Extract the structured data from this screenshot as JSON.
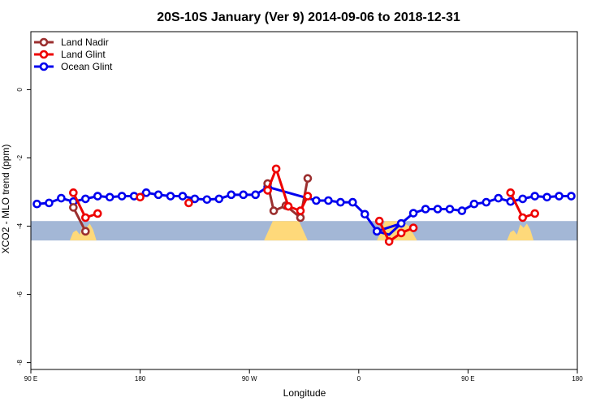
{
  "chart_data": {
    "type": "line",
    "title": "20S-10S January (Ver 9)   2014-09-06 to 2018-12-31",
    "xlabel": "Longitude",
    "ylabel": "XCO2 - MLO trend (ppm)",
    "x_ticks": [
      {
        "value": 90,
        "label": "90 E"
      },
      {
        "value": 180,
        "label": "180"
      },
      {
        "value": 270,
        "label": "90 W"
      },
      {
        "value": 360,
        "label": "0"
      },
      {
        "value": 450,
        "label": "90 E"
      },
      {
        "value": 540,
        "label": "180"
      }
    ],
    "y_ticks": [
      {
        "value": 0,
        "label": "0"
      },
      {
        "value": -2,
        "label": "-2"
      },
      {
        "value": -4,
        "label": "-4"
      },
      {
        "value": -6,
        "label": "-6"
      },
      {
        "value": -8,
        "label": "-8"
      }
    ],
    "xlim": [
      90,
      540
    ],
    "ylim": [
      -8.2,
      1.7
    ],
    "legend_position": "top-left",
    "grid": false,
    "series": [
      {
        "name": "Land Nadir",
        "color": "#9b2f2f",
        "x": [
          125,
          135,
          285,
          290,
          300,
          312,
          318
        ],
        "y": [
          -3.45,
          -4.15,
          -2.75,
          -3.55,
          -3.4,
          -3.75,
          -2.6
        ],
        "breaks_after_index": [
          1
        ]
      },
      {
        "name": "Land Glint",
        "color": "#ee0000",
        "points": [
          {
            "x": 125,
            "y": -3.02
          },
          {
            "x": 135,
            "y": -3.75
          },
          {
            "x": 145,
            "y": -3.63
          },
          {
            "x": 180,
            "y": -3.15
          },
          {
            "x": 220,
            "y": -3.32
          },
          {
            "x": 285,
            "y": -2.95
          },
          {
            "x": 292,
            "y": -2.32
          },
          {
            "x": 302,
            "y": -3.42
          },
          {
            "x": 312,
            "y": -3.55
          },
          {
            "x": 318,
            "y": -3.12
          },
          {
            "x": 377,
            "y": -3.85
          },
          {
            "x": 385,
            "y": -4.45
          },
          {
            "x": 395,
            "y": -4.2
          },
          {
            "x": 405,
            "y": -4.05
          },
          {
            "x": 485,
            "y": -3.02
          },
          {
            "x": 495,
            "y": -3.75
          },
          {
            "x": 505,
            "y": -3.63
          }
        ],
        "segments": [
          [
            0,
            2
          ],
          [
            5,
            9
          ],
          [
            10,
            13
          ],
          [
            14,
            16
          ]
        ],
        "isolated": [
          3,
          4
        ]
      },
      {
        "name": "Ocean Glint",
        "color": "#0000ee",
        "x": [
          95,
          105,
          115,
          125,
          135,
          145,
          155,
          165,
          175,
          185,
          195,
          205,
          215,
          225,
          235,
          245,
          255,
          265,
          275,
          285,
          325,
          335,
          345,
          355,
          365,
          375,
          395,
          405,
          415,
          425,
          435,
          445,
          455,
          465,
          475,
          485,
          495,
          505,
          515,
          525,
          535
        ],
        "y": [
          -3.35,
          -3.32,
          -3.18,
          -3.28,
          -3.2,
          -3.12,
          -3.15,
          -3.12,
          -3.12,
          -3.02,
          -3.08,
          -3.12,
          -3.12,
          -3.2,
          -3.22,
          -3.2,
          -3.08,
          -3.08,
          -3.08,
          -2.85,
          -3.25,
          -3.25,
          -3.3,
          -3.3,
          -3.65,
          -4.15,
          -3.92,
          -3.62,
          -3.5,
          -3.5,
          -3.5,
          -3.55,
          -3.35,
          -3.3,
          -3.18,
          -3.28,
          -3.2,
          -3.12,
          -3.15,
          -3.12,
          -3.12
        ],
        "extra_segments": [
          {
            "x": [
              375,
              385,
              395
            ],
            "y": [
              -4.15,
              -4.25,
              -3.92
            ]
          }
        ]
      }
    ],
    "surface_band": {
      "y_range": [
        -4.42,
        -3.85
      ],
      "ocean_color": "#a3b7d6",
      "land_color": "#fed97a",
      "land_regions": [
        {
          "x": [
            122,
            144
          ],
          "y_top": [
            -4.42,
            -4.18,
            -4.12,
            -4.25,
            -3.95,
            -4.05,
            -3.92,
            -4.1,
            -4.42
          ]
        },
        {
          "x": [
            282,
            318
          ],
          "y_top": [
            -4.42,
            -3.85,
            -3.85,
            -3.85,
            -3.85,
            -4.42
          ]
        },
        {
          "x": [
            375,
            408
          ],
          "y_top": [
            -4.42,
            -3.85,
            -3.85,
            -3.85,
            -4.0,
            -4.42
          ]
        },
        {
          "x": [
            482,
            504
          ],
          "y_top": [
            -4.42,
            -4.18,
            -4.12,
            -4.25,
            -3.95,
            -4.05,
            -3.92,
            -4.1,
            -4.42
          ]
        }
      ]
    }
  }
}
